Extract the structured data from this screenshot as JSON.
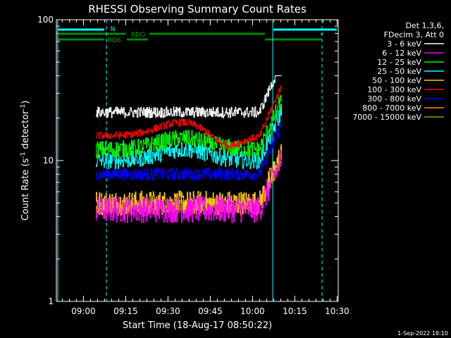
{
  "chart_data": {
    "type": "line",
    "title": "RHESSI Observing Summary Count Rates",
    "xlabel": "Start Time (18-Aug-17 08:50:22)",
    "ylabel_main": "Count Rate (s",
    "ylabel_sup": "-1",
    "ylabel_mid": " detector",
    "ylabel_sup2": "-1",
    "ylabel_end": ")",
    "yscale": "log",
    "ylim": [
      1,
      100
    ],
    "xlim_minutes": [
      0,
      100
    ],
    "y_ticks": [
      {
        "value": 1,
        "label": "1"
      },
      {
        "value": 10,
        "label": "10"
      },
      {
        "value": 100,
        "label": "100"
      }
    ],
    "x_ticks": [
      {
        "minute": 9.6,
        "label": "09:00"
      },
      {
        "minute": 24.6,
        "label": "09:15"
      },
      {
        "minute": 39.6,
        "label": "09:30"
      },
      {
        "minute": 54.6,
        "label": "09:45"
      },
      {
        "minute": 69.6,
        "label": "10:00"
      },
      {
        "minute": 84.6,
        "label": "10:15"
      },
      {
        "minute": 99.6,
        "label": "10:30"
      }
    ],
    "legend_header": [
      "Det 1,3,6,",
      "FDecim 3, Att 0"
    ],
    "legend_placement": "right",
    "series": [
      {
        "name": "3 - 6 keV",
        "color": "#ffffff",
        "level": 22,
        "noise": 0.09
      },
      {
        "name": "6 - 12 keV",
        "color": "#ff00ff",
        "level": 4.5,
        "noise": 0.22
      },
      {
        "name": "12 - 25 keV",
        "color": "#00ff00",
        "level": 12,
        "noise": 0.14
      },
      {
        "name": "25 - 50 keV",
        "color": "#00ffff",
        "level": 10,
        "noise": 0.14
      },
      {
        "name": "50 - 100 keV",
        "color": "#ffcc00",
        "level": 5,
        "noise": 0.2
      },
      {
        "name": "100 - 300 keV",
        "color": "#ff0000",
        "level": 15,
        "noise": 0.06
      },
      {
        "name": "300 - 800 keV",
        "color": "#0000ff",
        "level": 8,
        "noise": 0.1
      },
      {
        "name": "800 - 7000 keV",
        "color": "#ff8800",
        "level": 4.6,
        "noise": 0.1
      },
      {
        "name": "7000 - 15000 keV",
        "color": "#999900",
        "level": 4.8,
        "noise": 0.12
      }
    ],
    "data_interval_minutes": [
      14,
      80
    ],
    "flags": [
      {
        "label": "N",
        "color": "#00ffff"
      },
      {
        "label": "RDO",
        "color": "#008800"
      },
      {
        "label": "RD6",
        "color": "#008800"
      }
    ],
    "footer_date": "1-Sep-2022 18:10"
  }
}
